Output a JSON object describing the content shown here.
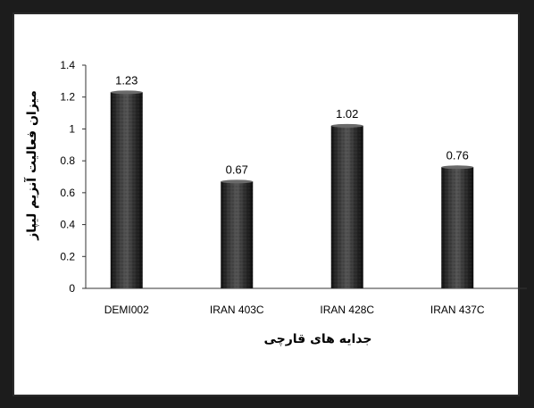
{
  "chart_data": {
    "type": "bar",
    "title": "",
    "xlabel": "جدایه های قارچی",
    "ylabel": "میزان فعالیت آنزیم لیپاز",
    "categories": [
      "DEMI002",
      "IRAN 403C",
      "IRAN 428C",
      "IRAN 437C"
    ],
    "values": [
      1.23,
      0.67,
      1.02,
      0.76
    ],
    "data_labels": [
      "1.23",
      "0.67",
      "1.02",
      "0.76"
    ],
    "ylim": [
      0,
      1.4
    ],
    "yticks": [
      "0",
      "0.2",
      "0.4",
      "0.6",
      "0.8",
      "1",
      "1.2",
      "1.4"
    ],
    "grid": false,
    "legend": "none",
    "bar_color": "#2b2b2b",
    "bar_highlight": "#5a5a5a"
  }
}
